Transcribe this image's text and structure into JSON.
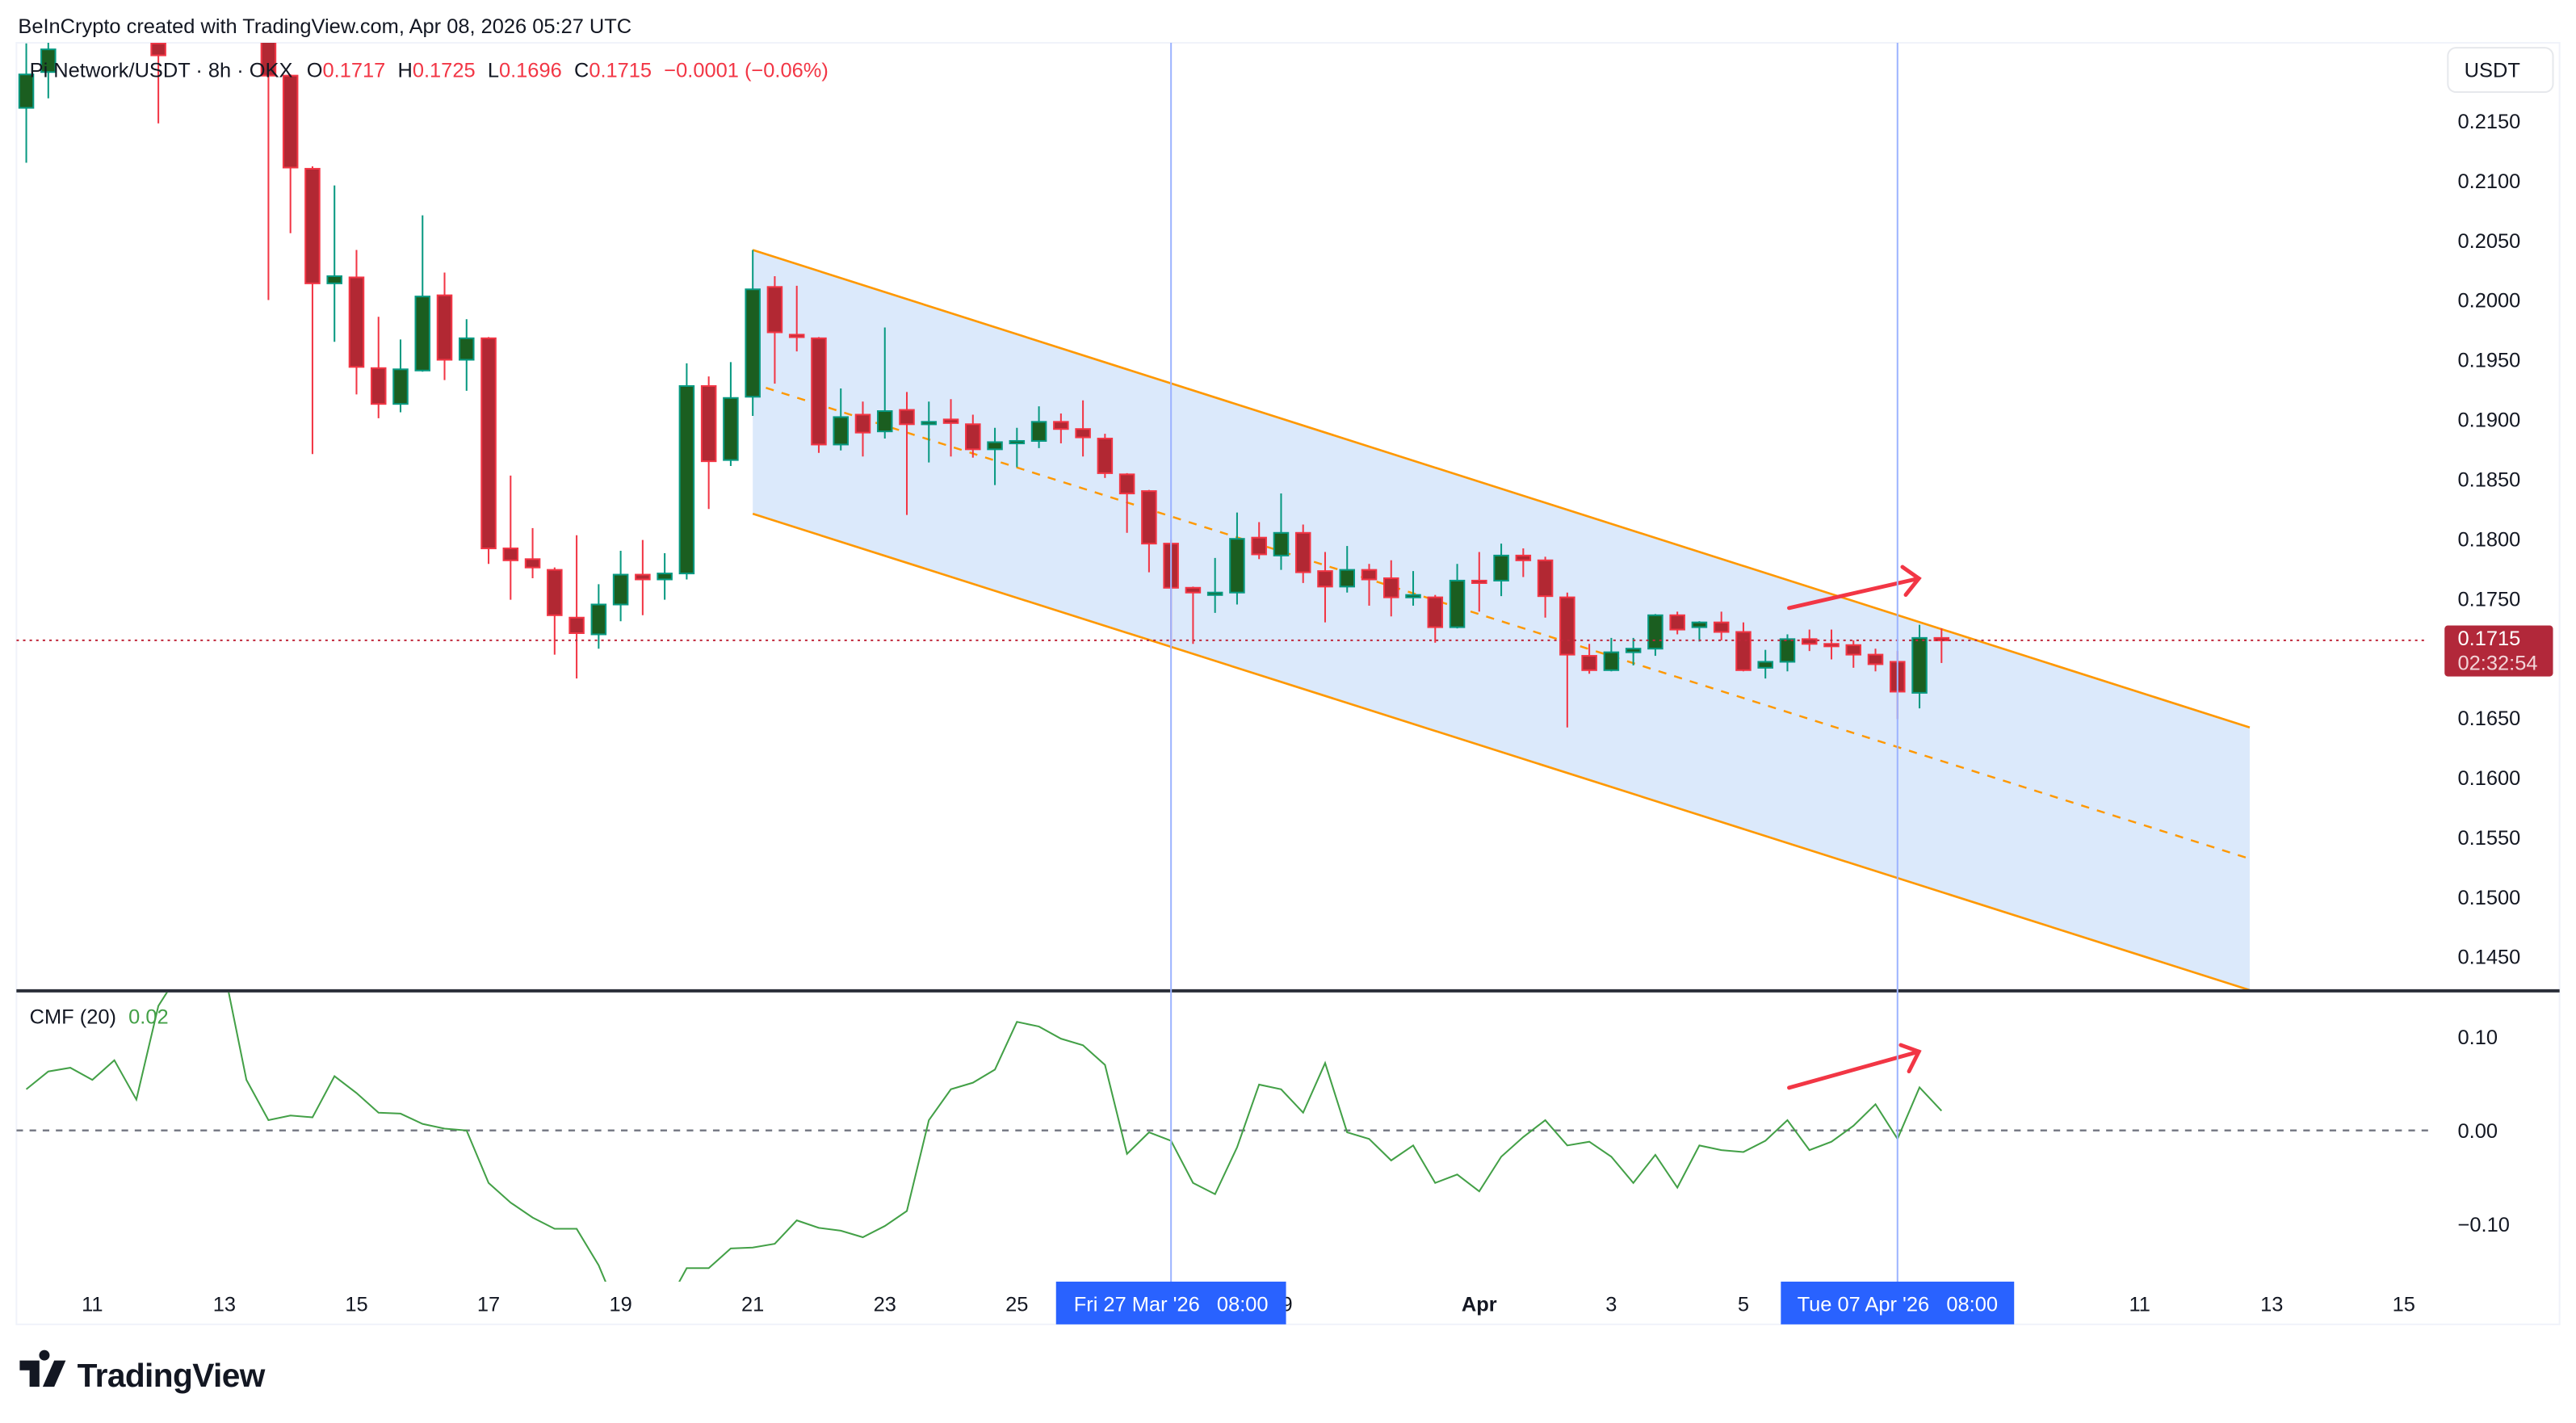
{
  "header": {
    "credit": "BeInCrypto created with TradingView.com, Apr 08, 2026 05:27 UTC"
  },
  "legend": {
    "symbol": "Pi Network/USDT · 8h · OKX",
    "o_label": "O",
    "o": "0.1717",
    "h_label": "H",
    "h": "0.1725",
    "l_label": "L",
    "l": "0.1696",
    "c_label": "C",
    "c": "0.1715",
    "change": "−0.0001 (−0.06%)"
  },
  "currency_button": "USDT",
  "price_tag": {
    "price": "0.1715",
    "countdown": "02:32:54"
  },
  "cmf_legend": {
    "name": "CMF (20)",
    "value": "0.02"
  },
  "crosshair_labels": [
    "Fri 27 Mar '26   08:00",
    "Tue 07 Apr '26   08:00"
  ],
  "footer": {
    "logo": "TradingView"
  },
  "colors": {
    "bull_body": "#1b5e20",
    "bull_border": "#089981",
    "bear_body": "#b22833",
    "bear_border": "#f23645",
    "channel_line": "#ff9800",
    "channel_fill": "#dbe9fb",
    "cmf_line": "#43a047",
    "annotation_arrow": "#f23645",
    "crosshair": "#2962ff",
    "price_tag": "#b2283a"
  },
  "chart_data": [
    {
      "type": "candlestick",
      "title": "Pi Network/USDT · 8h · OKX",
      "ylabel": "USDT",
      "ylim": [
        0.142,
        0.2215
      ],
      "y_ticks": [
        "0.2150",
        "0.2100",
        "0.2050",
        "0.2000",
        "0.1950",
        "0.1900",
        "0.1850",
        "0.1800",
        "0.1750",
        "0.1650",
        "0.1600",
        "0.1550",
        "0.1500",
        "0.1450"
      ],
      "x_ticks": [
        {
          "t": "2026-03-11T00:00",
          "label": "11"
        },
        {
          "t": "2026-03-13T00:00",
          "label": "13"
        },
        {
          "t": "2026-03-15T00:00",
          "label": "15"
        },
        {
          "t": "2026-03-17T00:00",
          "label": "17"
        },
        {
          "t": "2026-03-19T00:00",
          "label": "19"
        },
        {
          "t": "2026-03-21T00:00",
          "label": "21"
        },
        {
          "t": "2026-03-23T00:00",
          "label": "23"
        },
        {
          "t": "2026-03-25T00:00",
          "label": "25"
        },
        {
          "t": "2026-03-29T00:00",
          "label": "29"
        },
        {
          "t": "2026-04-01T00:00",
          "label": "Apr"
        },
        {
          "t": "2026-04-03T00:00",
          "label": "3"
        },
        {
          "t": "2026-04-05T00:00",
          "label": "5"
        },
        {
          "t": "2026-04-11T00:00",
          "label": "11"
        },
        {
          "t": "2026-04-13T00:00",
          "label": "13"
        },
        {
          "t": "2026-04-15T00:00",
          "label": "15"
        }
      ],
      "candle_fields": [
        "time",
        "open",
        "high",
        "low",
        "close"
      ],
      "candles": [
        [
          "2026-03-10T00:00",
          0.2161,
          0.2215,
          0.2115,
          0.2189
        ],
        [
          "2026-03-10T08:00",
          0.2191,
          0.2225,
          0.2169,
          0.221
        ],
        [
          "2026-03-12T00:00",
          0.2215,
          0.224,
          0.2148,
          0.2205
        ],
        [
          "2026-03-13T16:00",
          0.224,
          0.225,
          0.2,
          0.2188
        ],
        [
          "2026-03-14T00:00",
          0.2188,
          0.2189,
          0.2056,
          0.2111
        ],
        [
          "2026-03-14T08:00",
          0.211,
          0.2112,
          0.1871,
          0.2014
        ],
        [
          "2026-03-14T16:00",
          0.2014,
          0.2096,
          0.1965,
          0.202
        ],
        [
          "2026-03-15T00:00",
          0.2019,
          0.2042,
          0.1921,
          0.1944
        ],
        [
          "2026-03-15T08:00",
          0.1943,
          0.1986,
          0.1901,
          0.1913
        ],
        [
          "2026-03-15T16:00",
          0.1913,
          0.1967,
          0.1906,
          0.1942
        ],
        [
          "2026-03-16T00:00",
          0.1941,
          0.2071,
          0.194,
          0.2003
        ],
        [
          "2026-03-16T08:00",
          0.2004,
          0.2023,
          0.1933,
          0.195
        ],
        [
          "2026-03-16T16:00",
          0.195,
          0.1984,
          0.1924,
          0.1968
        ],
        [
          "2026-03-17T00:00",
          0.1968,
          0.1969,
          0.1779,
          0.1792
        ],
        [
          "2026-03-17T08:00",
          0.1792,
          0.1853,
          0.1749,
          0.1782
        ],
        [
          "2026-03-17T16:00",
          0.1783,
          0.1809,
          0.1767,
          0.1776
        ],
        [
          "2026-03-18T00:00",
          0.1774,
          0.1776,
          0.1703,
          0.1736
        ],
        [
          "2026-03-18T08:00",
          0.1734,
          0.1803,
          0.1683,
          0.1721
        ],
        [
          "2026-03-18T16:00",
          0.172,
          0.1762,
          0.1708,
          0.1745
        ],
        [
          "2026-03-19T00:00",
          0.1745,
          0.179,
          0.1731,
          0.177
        ],
        [
          "2026-03-19T08:00",
          0.177,
          0.1799,
          0.1736,
          0.1766
        ],
        [
          "2026-03-19T16:00",
          0.1766,
          0.1788,
          0.1749,
          0.1771
        ],
        [
          "2026-03-20T00:00",
          0.1771,
          0.1947,
          0.1766,
          0.1928
        ],
        [
          "2026-03-20T08:00",
          0.1928,
          0.1936,
          0.1825,
          0.1865
        ],
        [
          "2026-03-20T16:00",
          0.1866,
          0.1948,
          0.1861,
          0.1918
        ],
        [
          "2026-03-21T00:00",
          0.1919,
          0.2042,
          0.1903,
          0.2009
        ],
        [
          "2026-03-21T08:00",
          0.2011,
          0.202,
          0.193,
          0.1973
        ],
        [
          "2026-03-21T16:00",
          0.1971,
          0.2012,
          0.1957,
          0.1969
        ],
        [
          "2026-03-22T00:00",
          0.1968,
          0.1969,
          0.1872,
          0.1879
        ],
        [
          "2026-03-22T08:00",
          0.1879,
          0.1926,
          0.1874,
          0.1902
        ],
        [
          "2026-03-22T16:00",
          0.1904,
          0.1915,
          0.1869,
          0.1889
        ],
        [
          "2026-03-23T00:00",
          0.189,
          0.1977,
          0.1884,
          0.1907
        ],
        [
          "2026-03-23T08:00",
          0.1908,
          0.1923,
          0.182,
          0.1896
        ],
        [
          "2026-03-23T16:00",
          0.1896,
          0.1915,
          0.1864,
          0.1898
        ],
        [
          "2026-03-24T00:00",
          0.19,
          0.1917,
          0.1869,
          0.1897
        ],
        [
          "2026-03-24T08:00",
          0.1896,
          0.1904,
          0.1868,
          0.1875
        ],
        [
          "2026-03-24T16:00",
          0.1875,
          0.1893,
          0.1845,
          0.1881
        ],
        [
          "2026-03-25T00:00",
          0.1881,
          0.1893,
          0.186,
          0.1882
        ],
        [
          "2026-03-25T08:00",
          0.1882,
          0.1911,
          0.1876,
          0.1898
        ],
        [
          "2026-03-25T16:00",
          0.1898,
          0.1905,
          0.188,
          0.1892
        ],
        [
          "2026-03-26T00:00",
          0.1892,
          0.1916,
          0.1869,
          0.1885
        ],
        [
          "2026-03-26T08:00",
          0.1884,
          0.1888,
          0.1851,
          0.1855
        ],
        [
          "2026-03-26T16:00",
          0.1854,
          0.1855,
          0.1805,
          0.1838
        ],
        [
          "2026-03-27T00:00",
          0.184,
          0.1841,
          0.1772,
          0.1796
        ],
        [
          "2026-03-27T08:00",
          0.1796,
          0.1799,
          0.1708,
          0.1759
        ],
        [
          "2026-03-27T16:00",
          0.1759,
          0.176,
          0.1712,
          0.1755
        ],
        [
          "2026-03-28T00:00",
          0.1754,
          0.1784,
          0.1738,
          0.1755
        ],
        [
          "2026-03-28T08:00",
          0.1755,
          0.1822,
          0.1745,
          0.18
        ],
        [
          "2026-03-28T16:00",
          0.1801,
          0.1814,
          0.1783,
          0.1787
        ],
        [
          "2026-03-29T00:00",
          0.1786,
          0.1838,
          0.1774,
          0.1805
        ],
        [
          "2026-03-29T08:00",
          0.1805,
          0.1812,
          0.1763,
          0.1772
        ],
        [
          "2026-03-29T16:00",
          0.1773,
          0.1789,
          0.173,
          0.176
        ],
        [
          "2026-03-30T00:00",
          0.176,
          0.1794,
          0.1755,
          0.1774
        ],
        [
          "2026-03-30T08:00",
          0.1774,
          0.1779,
          0.1744,
          0.1766
        ],
        [
          "2026-03-30T16:00",
          0.1767,
          0.1782,
          0.1735,
          0.1751
        ],
        [
          "2026-03-31T00:00",
          0.1752,
          0.1773,
          0.1744,
          0.1753
        ],
        [
          "2026-03-31T08:00",
          0.1751,
          0.1753,
          0.1713,
          0.1726
        ],
        [
          "2026-03-31T16:00",
          0.1726,
          0.1779,
          0.1725,
          0.1765
        ],
        [
          "2026-04-01T00:00",
          0.1765,
          0.1789,
          0.1739,
          0.1763
        ],
        [
          "2026-04-01T08:00",
          0.1765,
          0.1796,
          0.1752,
          0.1786
        ],
        [
          "2026-04-01T16:00",
          0.1786,
          0.1792,
          0.1768,
          0.1782
        ],
        [
          "2026-04-02T00:00",
          0.1782,
          0.1785,
          0.1734,
          0.1752
        ],
        [
          "2026-04-02T08:00",
          0.1751,
          0.1755,
          0.1642,
          0.1703
        ],
        [
          "2026-04-02T16:00",
          0.1702,
          0.1712,
          0.1687,
          0.169
        ],
        [
          "2026-04-03T00:00",
          0.169,
          0.1717,
          0.1689,
          0.1705
        ],
        [
          "2026-04-03T08:00",
          0.1705,
          0.1717,
          0.1694,
          0.1708
        ],
        [
          "2026-04-03T16:00",
          0.1708,
          0.1737,
          0.1702,
          0.1736
        ],
        [
          "2026-04-04T00:00",
          0.1736,
          0.1739,
          0.172,
          0.1724
        ],
        [
          "2026-04-04T08:00",
          0.1726,
          0.1731,
          0.1714,
          0.173
        ],
        [
          "2026-04-04T16:00",
          0.173,
          0.1739,
          0.1715,
          0.1722
        ],
        [
          "2026-04-05T00:00",
          0.1722,
          0.173,
          0.1689,
          0.169
        ],
        [
          "2026-04-05T08:00",
          0.1692,
          0.1707,
          0.1683,
          0.1697
        ],
        [
          "2026-04-05T16:00",
          0.1697,
          0.172,
          0.1689,
          0.1716
        ],
        [
          "2026-04-06T00:00",
          0.1716,
          0.1724,
          0.1706,
          0.1712
        ],
        [
          "2026-04-06T08:00",
          0.1712,
          0.1724,
          0.1699,
          0.1711
        ],
        [
          "2026-04-06T16:00",
          0.1711,
          0.1715,
          0.1692,
          0.1703
        ],
        [
          "2026-04-07T00:00",
          0.1703,
          0.1708,
          0.1689,
          0.1695
        ],
        [
          "2026-04-07T08:00",
          0.1697,
          0.1706,
          0.1649,
          0.1672
        ],
        [
          "2026-04-07T16:00",
          0.1671,
          0.1728,
          0.1658,
          0.1717
        ],
        [
          "2026-04-08T00:00",
          0.1717,
          0.1725,
          0.1696,
          0.1715
        ]
      ],
      "last_price": 0.1715,
      "channel": {
        "upper": [
          [
            "2026-03-21T00:00",
            0.2042
          ],
          [
            "2026-04-12T16:00",
            0.1642
          ]
        ],
        "middle": [
          [
            "2026-03-21T00:00",
            0.1932
          ],
          [
            "2026-04-12T16:00",
            0.1532
          ]
        ],
        "lower": [
          [
            "2026-03-21T00:00",
            0.1821
          ],
          [
            "2026-04-12T16:00",
            0.1422
          ]
        ]
      },
      "vertical_markers": [
        "2026-03-27T08:00",
        "2026-04-07T08:00"
      ]
    },
    {
      "type": "line",
      "title": "CMF (20)",
      "ylim": [
        -0.16,
        0.149
      ],
      "y_ticks": [
        "0.10",
        "0.00",
        "−0.10"
      ],
      "zero_line": true,
      "start": "2026-03-10T00:00",
      "interval": "8h",
      "values": [
        0.044,
        0.063,
        0.067,
        0.054,
        0.075,
        0.033,
        0.133,
        0.17,
        0.18,
        0.17,
        0.054,
        0.011,
        0.016,
        0.014,
        0.058,
        0.04,
        0.019,
        0.018,
        0.007,
        0.002,
        0.0,
        -0.056,
        -0.077,
        -0.093,
        -0.105,
        -0.105,
        -0.144,
        -0.2,
        -0.21,
        -0.19,
        -0.147,
        -0.147,
        -0.126,
        -0.125,
        -0.121,
        -0.096,
        -0.104,
        -0.107,
        -0.114,
        -0.102,
        -0.086,
        0.011,
        0.044,
        0.051,
        0.065,
        0.116,
        0.111,
        0.098,
        0.091,
        0.07,
        -0.025,
        -0.002,
        -0.011,
        -0.056,
        -0.068,
        -0.018,
        0.049,
        0.044,
        0.019,
        0.072,
        -0.002,
        -0.009,
        -0.032,
        -0.016,
        -0.056,
        -0.047,
        -0.065,
        -0.028,
        -0.007,
        0.011,
        -0.016,
        -0.012,
        -0.028,
        -0.056,
        -0.026,
        -0.061,
        -0.016,
        -0.021,
        -0.023,
        -0.011,
        0.011,
        -0.021,
        -0.012,
        0.005,
        0.028,
        -0.009,
        0.046,
        0.021
      ]
    }
  ]
}
